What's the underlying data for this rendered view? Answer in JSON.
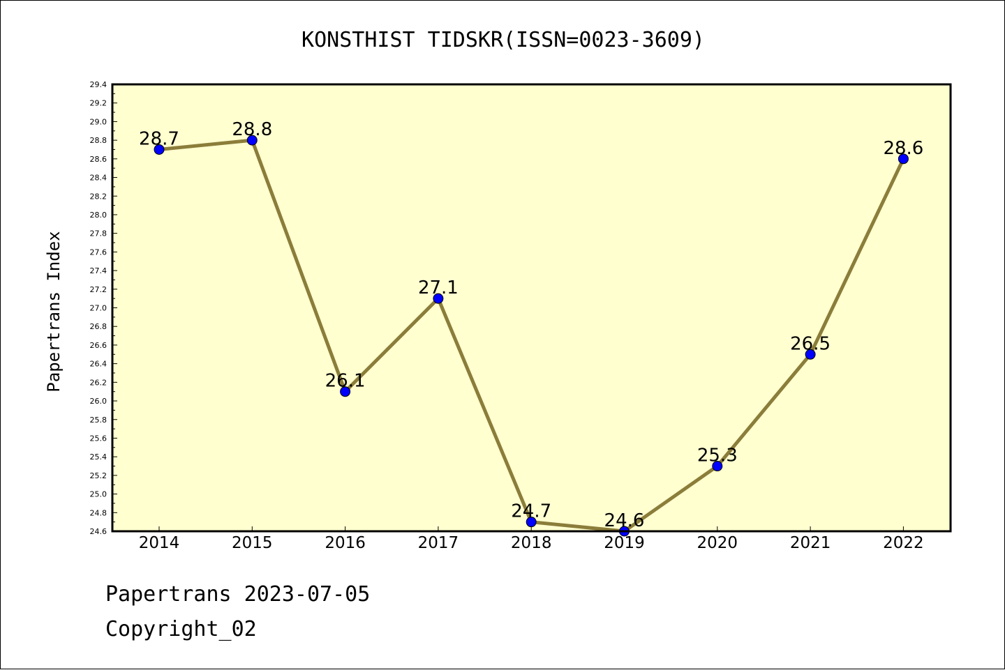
{
  "chart_data": {
    "type": "line",
    "title": "KONSTHIST TIDSKR(ISSN=0023-3609)",
    "ylabel": "Papertrans Index",
    "xlabel": "",
    "categories": [
      "2014",
      "2015",
      "2016",
      "2017",
      "2018",
      "2019",
      "2020",
      "2021",
      "2022"
    ],
    "series": [
      {
        "values": [
          28.7,
          28.8,
          26.1,
          27.1,
          24.7,
          24.6,
          25.3,
          26.5,
          28.6
        ]
      }
    ],
    "data_labels": [
      "28.7",
      "28.8",
      "26.1",
      "27.1",
      "24.7",
      "24.6",
      "25.3",
      "26.5",
      "28.6"
    ],
    "ylim": [
      24.6,
      29.4
    ],
    "yticks": [
      "24.6",
      "24.8",
      "25.0",
      "25.2",
      "25.4",
      "25.6",
      "25.8",
      "26.0",
      "26.2",
      "26.4",
      "26.6",
      "26.8",
      "27.0",
      "27.2",
      "27.4",
      "27.6",
      "27.8",
      "28.0",
      "28.2",
      "28.4",
      "28.6",
      "28.8",
      "29.0",
      "29.2",
      "29.4"
    ],
    "grid": false,
    "colors": {
      "plot_background": "#ffffd0",
      "line": "#8b7d3a",
      "marker": "#0000ff"
    }
  },
  "footer": {
    "line1": "Papertrans 2023-07-05",
    "line2": "Copyright_02"
  }
}
